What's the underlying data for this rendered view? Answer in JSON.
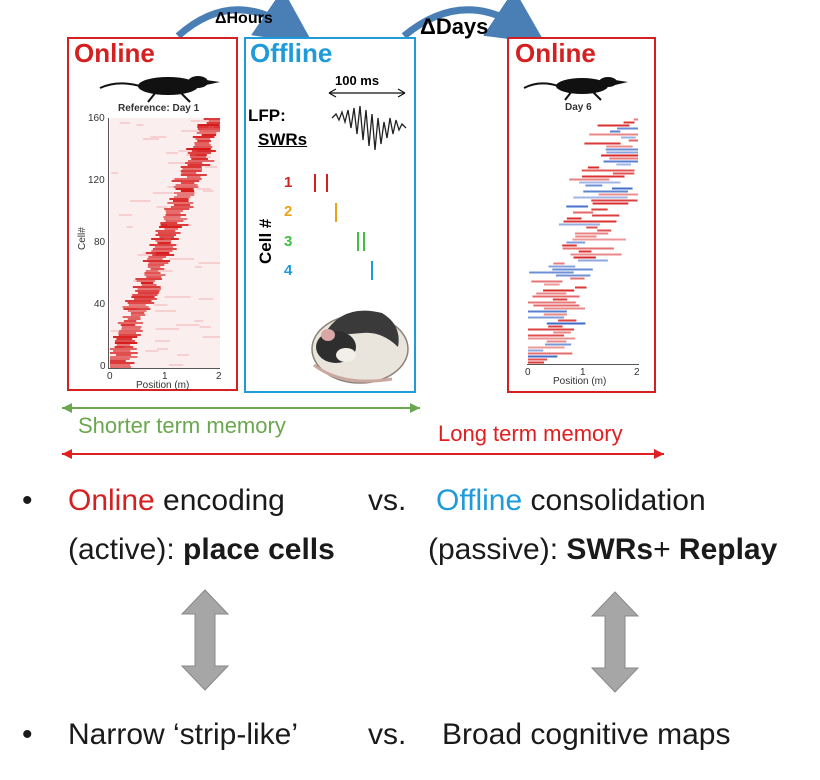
{
  "colors": {
    "online": "#d42020",
    "offline": "#1e9bd8",
    "short_term": "#6aa84f",
    "long_term": "#e02020",
    "cell1": "#d42020",
    "cell2": "#e8a317",
    "cell3": "#3fbf3f",
    "cell4": "#1e9bd8",
    "curve_arrow": "#4a7fb5",
    "double_arrow": "#a6a6a6"
  },
  "top": {
    "delta_hours": "ΔHours",
    "delta_days": "ΔDays"
  },
  "panel_left": {
    "title": "Online",
    "caption": "Reference: Day 1",
    "ylabel": "Cell#",
    "xlabel": "Position (m)",
    "yticks": [
      "160",
      "120",
      "80",
      "40",
      "0"
    ],
    "xticks": [
      "0",
      "1",
      "2"
    ]
  },
  "panel_mid": {
    "title": "Offline",
    "scale": "100 ms",
    "lfp_label": "LFP:",
    "swr_label": "SWRs",
    "cell_axis": "Cell #",
    "cells": [
      "1",
      "2",
      "3",
      "4"
    ]
  },
  "panel_right": {
    "title": "Online",
    "caption": "Day 6",
    "xlabel": "Position (m)",
    "xticks": [
      "0",
      "1",
      "2"
    ]
  },
  "memory": {
    "short": "Shorter term memory",
    "long": "Long term memory"
  },
  "bullets": {
    "marker": "•",
    "row1_online": "Online",
    "row1_encoding": " encoding",
    "row1_vs": "vs.",
    "row1_offline": "Offline",
    "row1_consolidation": " consolidation",
    "row2_active": "(active): ",
    "row2_place": "place cells",
    "row2_passive": "(passive): ",
    "row2_swrs": "SWRs",
    "row2_plus": "+ ",
    "row2_replay": "Replay",
    "row3_narrow": "Narrow ‘strip-like’",
    "row3_vs": "vs.",
    "row3_broad": "Broad cognitive maps"
  }
}
